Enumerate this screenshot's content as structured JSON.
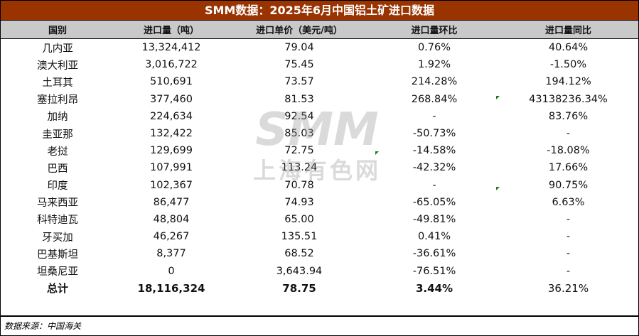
{
  "title": "SMM数据：2025年6月中国铝土矿进口数据",
  "headers": [
    "国别",
    "进口量（吨）",
    "进口单价（美元/吨）",
    "进口量环比",
    "进口量同比"
  ],
  "rows": [
    [
      "几内亚",
      "13,324,412",
      "79.04",
      "0.76%",
      "40.64%"
    ],
    [
      "澳大利亚",
      "3,016,722",
      "75.45",
      "1.92%",
      "-1.50%"
    ],
    [
      "土耳其",
      "510,691",
      "73.57",
      "214.28%",
      "194.12%"
    ],
    [
      "塞拉利昂",
      "377,460",
      "81.53",
      "268.84%",
      "43138236.34%"
    ],
    [
      "加纳",
      "224,634",
      "92.54",
      "-",
      "83.76%"
    ],
    [
      "圭亚那",
      "132,422",
      "85.03",
      "-50.73%",
      "-"
    ],
    [
      "老挝",
      "129,699",
      "72.75",
      "-14.58%",
      "-18.08%"
    ],
    [
      "巴西",
      "107,991",
      "113.24",
      "-42.32%",
      "17.66%"
    ],
    [
      "印度",
      "102,367",
      "70.78",
      "-",
      "90.75%"
    ],
    [
      "马来西亚",
      "86,477",
      "74.93",
      "-65.05%",
      "6.63%"
    ],
    [
      "科特迪瓦",
      "48,804",
      "65.00",
      "-49.81%",
      "-"
    ],
    [
      "牙买加",
      "46,267",
      "135.51",
      "0.41%",
      "-"
    ],
    [
      "巴基斯坦",
      "8,377",
      "68.52",
      "-36.61%",
      "-"
    ],
    [
      "坦桑尼亚",
      "0",
      "3,643.94",
      "-76.51%",
      "-"
    ]
  ],
  "total": [
    "总计",
    "18,116,324",
    "78.75",
    "3.44%",
    "36.21%"
  ],
  "source": "数据来源：中国海关",
  "watermark": {
    "logo": "SMM",
    "name": "上海有色网"
  },
  "colors": {
    "title_bg": "#993300",
    "header_bg": "#c9c9c9"
  }
}
